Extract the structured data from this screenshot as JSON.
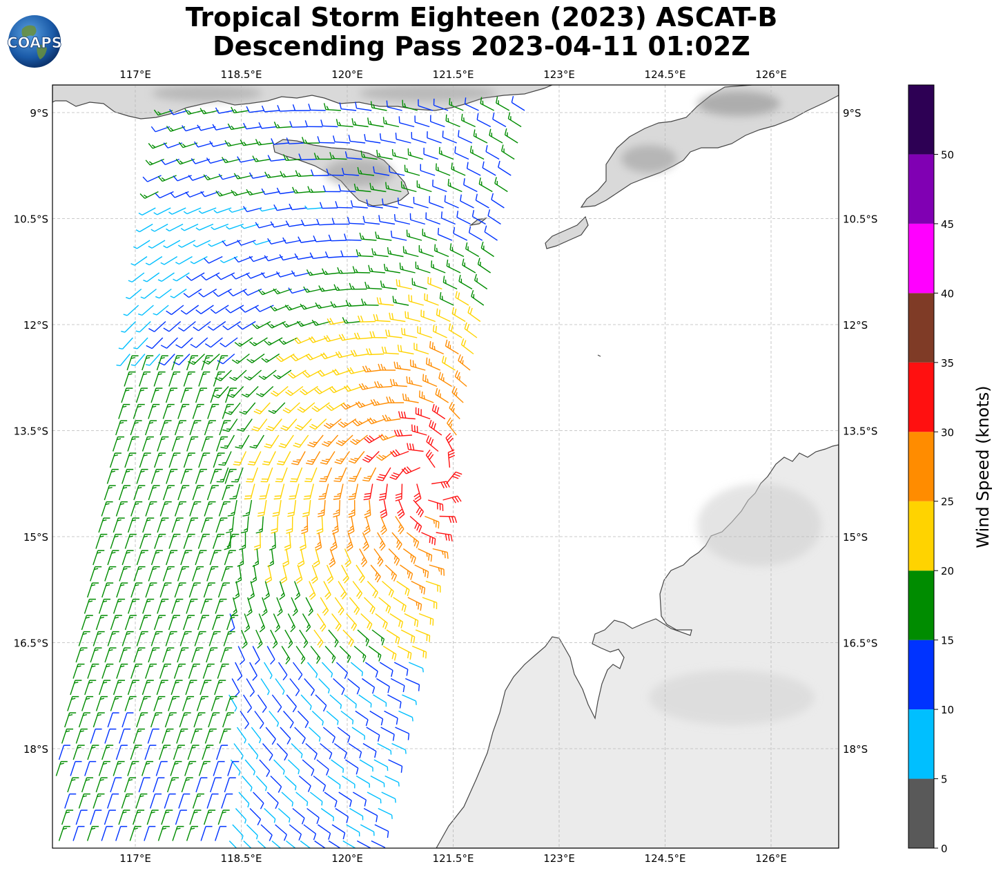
{
  "title": {
    "line1": "Tropical Storm Eighteen (2023) ASCAT-B",
    "line2": "Descending Pass 2023-04-11 01:02Z"
  },
  "logo": {
    "text": "COAPS",
    "icon": "globe-logo"
  },
  "axes": {
    "lon_ticks": [
      "117°E",
      "118.5°E",
      "120°E",
      "121.5°E",
      "123°E",
      "124.5°E",
      "126°E"
    ],
    "lat_ticks": [
      "9°S",
      "10.5°S",
      "12°S",
      "13.5°S",
      "15°S",
      "16.5°S",
      "18°S"
    ]
  },
  "colorbar": {
    "label": "Wind Speed (knots)",
    "ticks": [
      "0",
      "5",
      "10",
      "15",
      "20",
      "25",
      "30",
      "35",
      "40",
      "45",
      "50"
    ],
    "bins": [
      {
        "from": 0,
        "to": 5,
        "color": "#595959"
      },
      {
        "from": 5,
        "to": 10,
        "color": "#00bfff"
      },
      {
        "from": 10,
        "to": 15,
        "color": "#0033ff"
      },
      {
        "from": 15,
        "to": 20,
        "color": "#008c00"
      },
      {
        "from": 20,
        "to": 25,
        "color": "#ffd300"
      },
      {
        "from": 25,
        "to": 30,
        "color": "#ff8c00"
      },
      {
        "from": 30,
        "to": 35,
        "color": "#ff1010"
      },
      {
        "from": 35,
        "to": 40,
        "color": "#7f3b26"
      },
      {
        "from": 40,
        "to": 45,
        "color": "#ff00ff"
      },
      {
        "from": 45,
        "to": 50,
        "color": "#8000b3"
      },
      {
        "from": 50,
        "to": 55,
        "color": "#2d0054"
      }
    ]
  }
}
